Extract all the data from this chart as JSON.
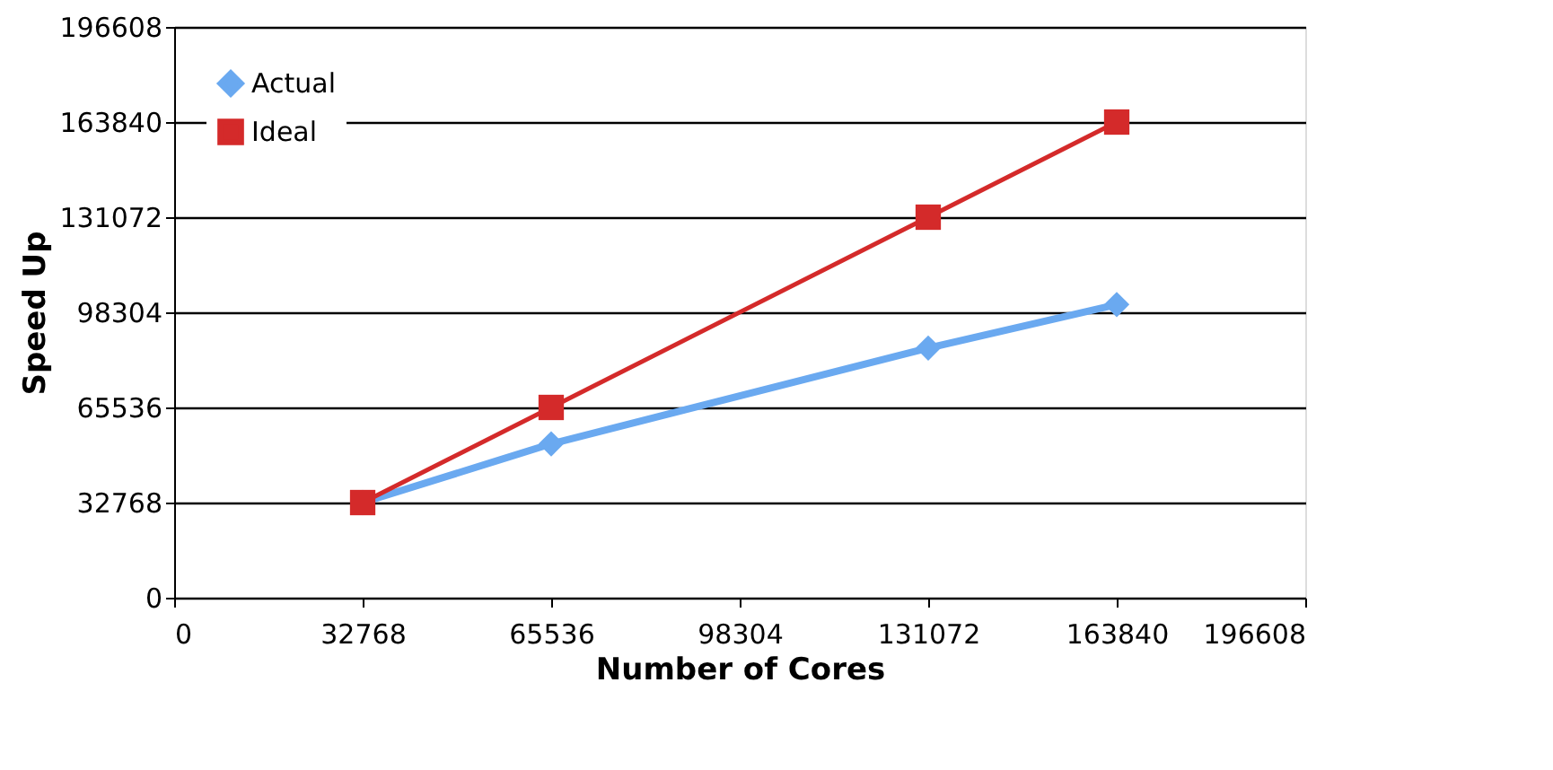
{
  "chart_data": {
    "type": "line",
    "xlabel": "Number of Cores",
    "ylabel": "Speed Up",
    "x": [
      32768,
      65536,
      131072,
      163840
    ],
    "series": [
      {
        "name": "Actual",
        "color": "#6aa9f0",
        "values": [
          32768,
          53000,
          86000,
          101000
        ],
        "marker": "diamond"
      },
      {
        "name": "Ideal",
        "color": "#d42a2a",
        "values": [
          32768,
          65536,
          131072,
          163840
        ],
        "marker": "square"
      }
    ],
    "xlim": [
      0,
      196608
    ],
    "xticks": [
      0,
      32768,
      65536,
      98304,
      131072,
      163840,
      196608
    ],
    "ylim": [
      0,
      196608
    ],
    "yticks": [
      0,
      32768,
      65536,
      98304,
      131072,
      163840,
      196608
    ],
    "grid": "y",
    "legend": "top left",
    "line_style": "solid"
  }
}
